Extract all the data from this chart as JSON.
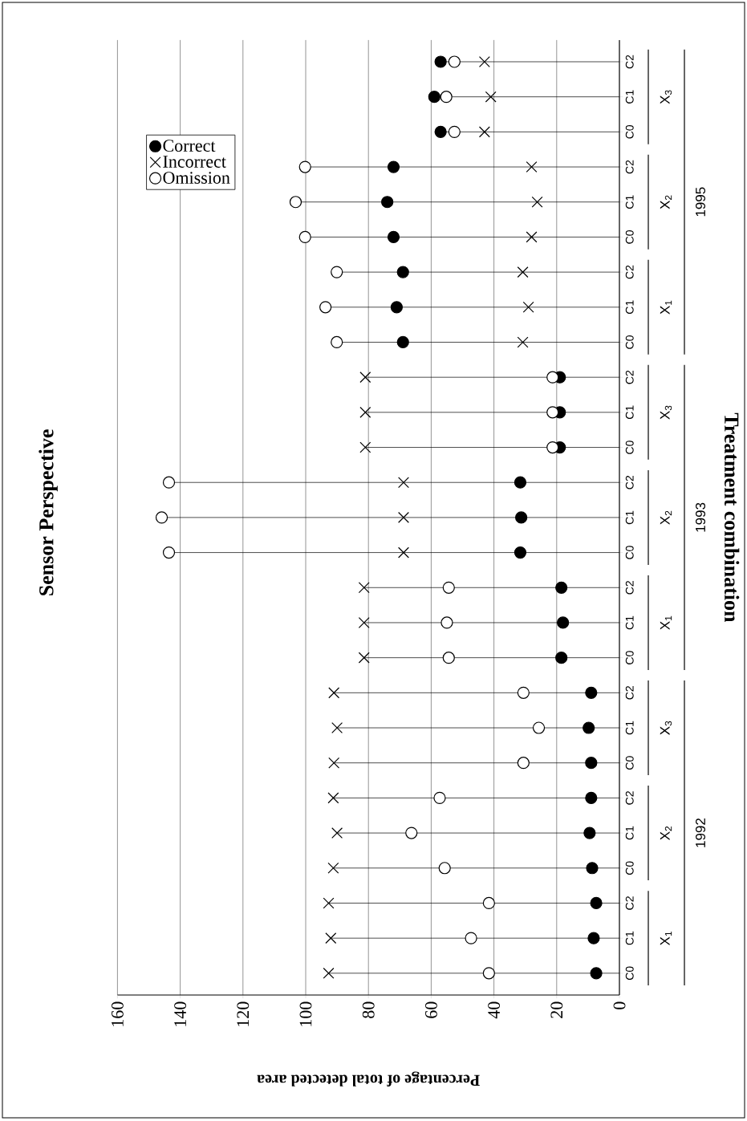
{
  "chart_data": {
    "type": "lollipop",
    "orientation": "horizontal",
    "title": "Sensor Perspective",
    "xlabel": "Percentage of total detected area",
    "ylabel": "Treatment combination",
    "categories": [
      "C2",
      "C1",
      "C0",
      "C2",
      "C1",
      "C0",
      "C2",
      "C1",
      "C0",
      "C2",
      "C1",
      "C0",
      "C2",
      "C1",
      "C0",
      "C2",
      "C1",
      "C0",
      "C2",
      "C1",
      "C0",
      "C2",
      "C1",
      "C0",
      "C2",
      "C1",
      "C0"
    ],
    "series": [
      {
        "name": "Correct",
        "color": "#000000",
        "marker": "circle",
        "values": [
          57.0,
          59.0,
          57.0,
          72.0,
          74.0,
          72.0,
          69.0,
          71.0,
          69.0,
          19.0,
          19.0,
          19.0,
          31.6,
          31.3,
          31.6,
          18.5,
          18.0,
          18.5,
          9.0,
          9.8,
          9.0,
          9.0,
          9.5,
          8.7,
          7.4,
          8.2,
          7.4
        ]
      },
      {
        "name": "Incorrect",
        "color": "#000000",
        "marker": "cross",
        "values": [
          43.0,
          41.0,
          43.0,
          28.0,
          26.2,
          28.0,
          30.8,
          29.0,
          30.8,
          81.0,
          81.0,
          81.0,
          68.8,
          68.8,
          68.8,
          81.4,
          81.4,
          81.4,
          91.0,
          90.0,
          91.0,
          91.2,
          90.0,
          91.2,
          92.7,
          92.0,
          92.7
        ]
      },
      {
        "name": "Omission",
        "color": "#ffffff",
        "marker": "circle",
        "values": [
          52.6,
          55.2,
          52.6,
          100.2,
          103.2,
          100.2,
          90.1,
          93.7,
          90.1,
          21.3,
          21.3,
          21.3,
          143.6,
          145.9,
          143.6,
          54.4,
          55.0,
          54.4,
          30.6,
          25.7,
          30.6,
          57.3,
          66.3,
          55.7,
          41.6,
          47.3,
          41.6
        ]
      }
    ],
    "annotations": [
      "X$_{3}$",
      "X$_{2}$",
      "X$_{1}$",
      "X$_{3}$",
      "X$_{2}$",
      "X$_{1}$",
      "X$_{3}$",
      "X$_{2}$",
      "X$_{1}$",
      "1995",
      "1993",
      "1992"
    ],
    "xlim": [
      160,
      0
    ],
    "xticks": [
      160,
      140,
      120,
      100,
      80,
      60,
      40,
      20,
      0
    ],
    "grid": "x",
    "legend": "top left"
  }
}
